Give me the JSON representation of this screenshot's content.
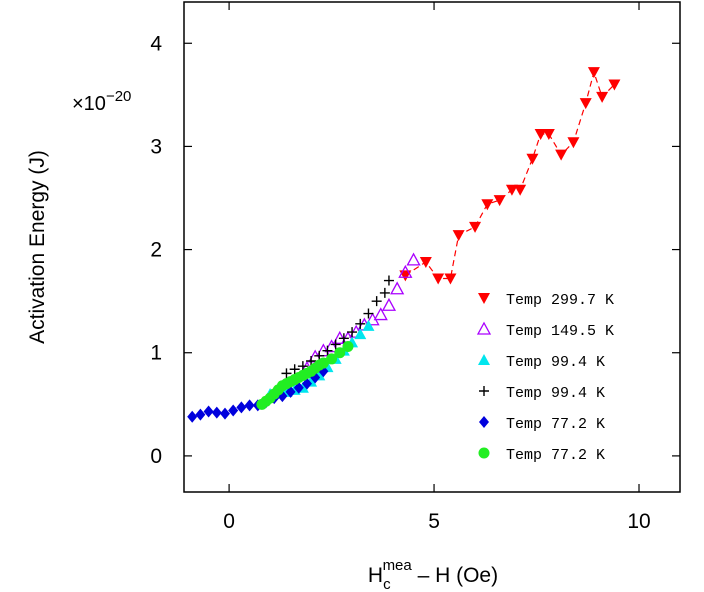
{
  "chart_data": {
    "type": "scatter",
    "title": "",
    "xlabel_main": "H",
    "xlabel_sub": "c",
    "xlabel_sup": "mea",
    "xlabel_tail": " – H (Oe)",
    "ylabel": "Activation Energy (J)",
    "y_multiplier": "×10",
    "y_multiplier_exp": "−20",
    "xlim": [
      -1.1,
      11.0
    ],
    "ylim": [
      -0.35,
      4.4
    ],
    "xticks": [
      0,
      5,
      10
    ],
    "xtick_labels": [
      "0",
      "5",
      "10"
    ],
    "yticks": [
      0,
      1,
      2,
      3,
      4
    ],
    "ytick_labels": [
      "0",
      "1",
      "2",
      "3",
      "4"
    ],
    "grid": false,
    "legend_position": "lower-right",
    "series": [
      {
        "name": "Temp 299.7 K",
        "color": "#ff0000",
        "marker": "triangle-down",
        "line": "dashed",
        "x": [
          4.3,
          4.8,
          5.1,
          5.4,
          5.6,
          6.0,
          6.3,
          6.6,
          6.9,
          7.1,
          7.4,
          7.6,
          7.8,
          8.1,
          8.4,
          8.7,
          8.9,
          9.1,
          9.4
        ],
        "y": [
          1.75,
          1.88,
          1.72,
          1.72,
          2.14,
          2.22,
          2.44,
          2.48,
          2.58,
          2.58,
          2.88,
          3.12,
          3.12,
          2.92,
          3.04,
          3.42,
          3.72,
          3.48,
          3.6
        ]
      },
      {
        "name": "Temp 149.5 K",
        "color": "#aa00ff",
        "marker": "triangle-up-open",
        "x": [
          1.9,
          2.1,
          2.3,
          2.5,
          2.7,
          2.9,
          3.1,
          3.3,
          3.5,
          3.7,
          3.9,
          4.1,
          4.3,
          4.5
        ],
        "y": [
          0.85,
          0.96,
          1.02,
          1.06,
          1.14,
          1.14,
          1.2,
          1.27,
          1.32,
          1.37,
          1.46,
          1.62,
          1.78,
          1.9
        ]
      },
      {
        "name": "Temp 99.4 K",
        "color": "#00e6ee",
        "marker": "triangle-up",
        "x": [
          1.0,
          1.2,
          1.4,
          1.6,
          1.8,
          2.0,
          2.2,
          2.4,
          2.6,
          2.8,
          3.0,
          3.2,
          3.4
        ],
        "y": [
          0.6,
          0.62,
          0.62,
          0.64,
          0.66,
          0.72,
          0.78,
          0.86,
          0.94,
          1.02,
          1.1,
          1.18,
          1.26
        ]
      },
      {
        "name": "Temp 99.4 K",
        "color": "#000000",
        "marker": "plus",
        "x": [
          1.4,
          1.6,
          1.8,
          2.0,
          2.2,
          2.4,
          2.6,
          2.8,
          3.0,
          3.2,
          3.4,
          3.6,
          3.8,
          3.9
        ],
        "y": [
          0.8,
          0.84,
          0.87,
          0.92,
          0.97,
          1.02,
          1.08,
          1.14,
          1.2,
          1.28,
          1.38,
          1.5,
          1.58,
          1.7
        ]
      },
      {
        "name": "Temp 77.2 K",
        "color": "#0000dd",
        "marker": "diamond",
        "x": [
          -0.9,
          -0.7,
          -0.5,
          -0.3,
          -0.1,
          0.1,
          0.3,
          0.5,
          0.7,
          0.9,
          1.1,
          1.3,
          1.5,
          1.7,
          1.9,
          2.1,
          2.3
        ],
        "y": [
          0.38,
          0.4,
          0.43,
          0.42,
          0.41,
          0.44,
          0.47,
          0.49,
          0.49,
          0.52,
          0.56,
          0.58,
          0.62,
          0.66,
          0.7,
          0.76,
          0.82
        ]
      },
      {
        "name": "Temp 77.2 K",
        "color": "#22ee22",
        "marker": "circle",
        "x": [
          0.8,
          0.9,
          1.0,
          1.1,
          1.2,
          1.3,
          1.4,
          1.5,
          1.6,
          1.7,
          1.8,
          1.9,
          2.0,
          2.1,
          2.2,
          2.3,
          2.5,
          2.7,
          2.9
        ],
        "y": [
          0.5,
          0.53,
          0.56,
          0.6,
          0.64,
          0.68,
          0.7,
          0.72,
          0.74,
          0.76,
          0.78,
          0.8,
          0.82,
          0.85,
          0.88,
          0.9,
          0.94,
          1.0,
          1.06
        ]
      }
    ]
  }
}
